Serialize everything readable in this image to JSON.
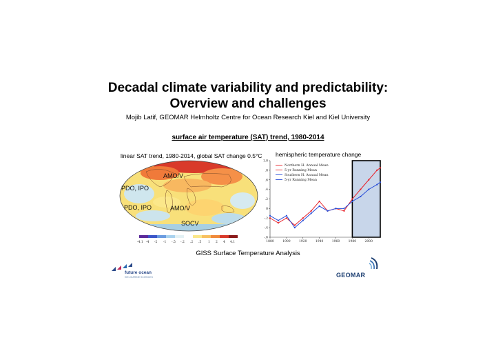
{
  "title_line1": "Decadal climate variability and predictability:",
  "title_line2": "Overview and challenges",
  "author": "Mojib Latif, GEOMAR Helmholtz Centre for Ocean Research Kiel and Kiel University",
  "section_heading": "surface air temperature (SAT) trend, 1980-2014",
  "map_caption": "linear SAT trend, 1980-2014, global SAT change 0.5°C",
  "hemi_caption": "hemispheric temperature change",
  "region_labels": {
    "amo_north": "AMO/V",
    "pdo_north": "PDO, IPO",
    "pdo_south": "PDO, IPO",
    "amo_south": "AMO/V",
    "socv": "SOCV"
  },
  "colorbar_ticks": [
    "-4.1",
    "-4",
    "-2",
    "-1",
    "-.5",
    "-.2",
    ".2",
    ".5",
    "1",
    "2",
    "4",
    "4.1"
  ],
  "source": "GISS Surface Temperature Analysis",
  "logo_future_ocean": "future ocean",
  "logo_future_ocean_sub": "KIEL MARINE SCIENCES",
  "logo_geomar": "GEOMAR",
  "colors": {
    "north": "#e8222a",
    "south": "#2a4fd8",
    "highlight": "#c8d6ea"
  },
  "chart_data": {
    "type": "line",
    "title": "hemispheric temperature change",
    "xlabel": "",
    "ylabel": "",
    "xlim": [
      1880,
      2014
    ],
    "ylim": [
      -0.6,
      1.0
    ],
    "x_ticks": [
      1880,
      1900,
      1920,
      1940,
      1960,
      1980,
      2000
    ],
    "y_ticks": [
      -0.6,
      -0.4,
      -0.2,
      0,
      0.2,
      0.4,
      0.6,
      0.8,
      1.0
    ],
    "y_tick_labels": [
      "-.6",
      "-.4",
      "-.2",
      "0",
      ".2",
      ".4",
      ".6",
      ".8",
      "1.0"
    ],
    "legend": [
      "Northern H. Annual Mean",
      "5-yr Running Mean",
      "Southern H. Annual Mean",
      "5-yr Running Mean"
    ],
    "legend_position": "top-left",
    "highlight_range": [
      1980,
      2014
    ],
    "x": [
      1880,
      1890,
      1900,
      1910,
      1920,
      1930,
      1940,
      1950,
      1960,
      1970,
      1980,
      1990,
      2000,
      2010,
      2014
    ],
    "series": [
      {
        "name": "Northern H. Annual Mean",
        "values": [
          -0.2,
          -0.3,
          -0.2,
          -0.35,
          -0.2,
          -0.05,
          0.15,
          -0.05,
          0.0,
          -0.05,
          0.2,
          0.4,
          0.6,
          0.8,
          0.85
        ]
      },
      {
        "name": "Southern H. Annual Mean",
        "values": [
          -0.15,
          -0.25,
          -0.15,
          -0.4,
          -0.25,
          -0.1,
          0.05,
          -0.05,
          0.0,
          0.0,
          0.15,
          0.25,
          0.4,
          0.5,
          0.55
        ]
      }
    ]
  }
}
